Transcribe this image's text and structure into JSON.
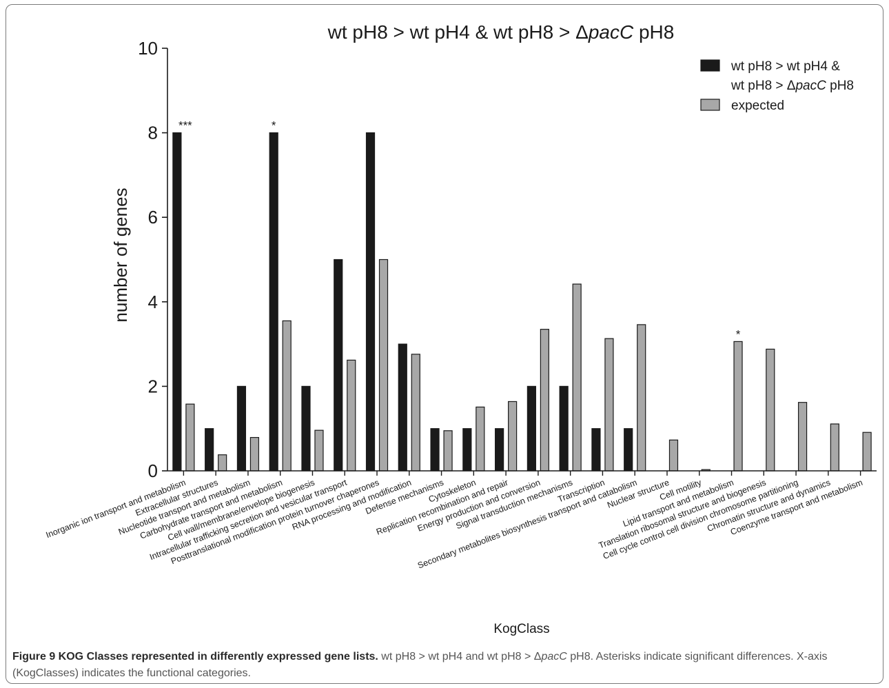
{
  "chart_data": {
    "type": "bar",
    "title": "wt pH8 > wt pH4 & wt pH8 > ΔpacC pH8",
    "xlabel": "KogClass",
    "ylabel": "number of genes",
    "ylim": [
      0,
      10
    ],
    "yticks": [
      0,
      2,
      4,
      6,
      8,
      10
    ],
    "grid": false,
    "legend_position": "top-right",
    "categories": [
      "Inorganic ion transport and metabolism",
      "Extracellular structures",
      "Nucleotide transport and metabolism",
      "Carbohydrate transport and metabolism",
      "Cell wall/membrane/envelope biogenesis",
      "Intracellular trafficking secretion and vesicular transport",
      "Posttranslational modification protein turnover chaperones",
      "RNA processing and modification",
      "Defense mechanisms",
      "Cytoskeleton",
      "Replication recombination and repair",
      "Energy production and conversion",
      "Signal transduction mechanisms",
      "Transcription",
      "Secondary metabolites biosynthesis transport and catabolism",
      "Nuclear structure",
      "Cell motility",
      "Lipid transport and metabolism",
      "Translation ribosomal structure and biogenesis",
      "Cell cycle control cell division chromosome partitioning",
      "Chromatin structure and dynamics",
      "Coenzyme transport and metabolism"
    ],
    "series": [
      {
        "name": "wt pH8 > wt pH4 & wt pH8 > ΔpacC pH8",
        "legend_line1": "wt pH8 > wt pH4 &",
        "legend_line2_pre": "wt pH8 > ",
        "legend_line2_delta": "Δ",
        "legend_line2_ital": "pacC",
        "legend_line2_post": " pH8",
        "color": "#1a1a1a",
        "values": [
          8,
          1,
          2,
          8,
          2,
          5,
          8,
          3,
          1,
          1,
          1,
          2,
          2,
          1,
          1,
          0,
          0,
          0,
          0,
          0,
          0,
          0
        ]
      },
      {
        "name": "expected",
        "color": "#a8a8a8",
        "values": [
          1.58,
          0.38,
          0.79,
          3.55,
          0.96,
          2.62,
          5.0,
          2.76,
          0.95,
          1.51,
          1.64,
          3.35,
          4.42,
          3.13,
          3.46,
          0.73,
          0.03,
          3.06,
          2.88,
          1.62,
          1.11,
          0.91
        ]
      }
    ],
    "annotations": [
      {
        "category_index": 0,
        "series": 0,
        "text": "***"
      },
      {
        "category_index": 3,
        "series": 0,
        "text": "*"
      },
      {
        "category_index": 17,
        "series": 1,
        "text": "*"
      }
    ]
  },
  "caption": {
    "lead": "Figure 9 KOG Classes represented in differently expressed gene lists.",
    "body_pre": " wt pH8 > wt pH4 and wt pH8 > Δ",
    "body_ital": "pacC",
    "body_post": " pH8. Asterisks indicate significant differences. X-axis (KogClasses) indicates the functional categories."
  }
}
